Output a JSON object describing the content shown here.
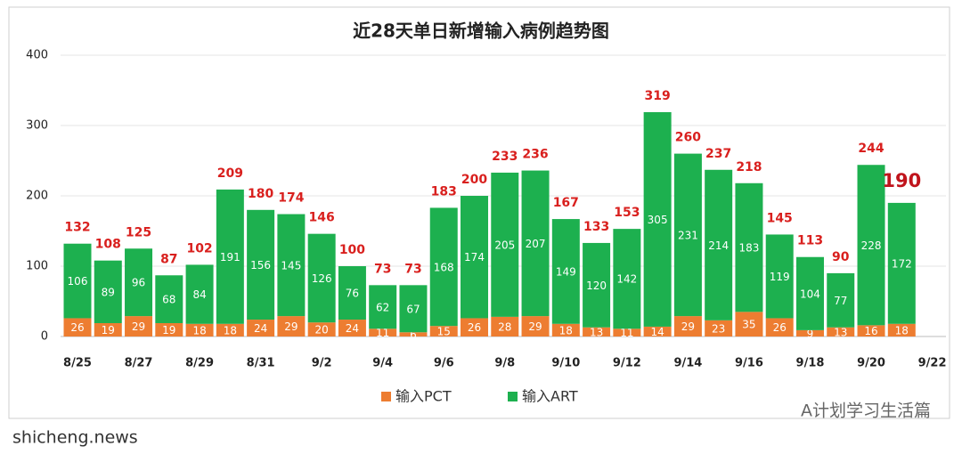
{
  "chart_data": {
    "type": "stacked_bar",
    "title": "近28天单日新增输入病例趋势图",
    "categories": [
      "8/25",
      null,
      "8/27",
      null,
      "8/29",
      null,
      "8/31",
      null,
      "9/2",
      null,
      "9/4",
      null,
      "9/6",
      null,
      "9/8",
      null,
      "9/10",
      null,
      "9/12",
      null,
      "9/14",
      null,
      "9/16",
      null,
      "9/18",
      null,
      "9/20",
      null,
      "9/22"
    ],
    "series": [
      {
        "name": "输入PCT",
        "color": "#ed7d31",
        "values": [
          26,
          19,
          29,
          19,
          18,
          18,
          24,
          29,
          20,
          24,
          11,
          6,
          15,
          26,
          28,
          29,
          18,
          13,
          11,
          14,
          29,
          23,
          35,
          26,
          9,
          13,
          16,
          18,
          null
        ]
      },
      {
        "name": "输入ART",
        "color": "#1db04f",
        "values": [
          106,
          89,
          96,
          68,
          84,
          191,
          156,
          145,
          126,
          76,
          62,
          67,
          168,
          174,
          205,
          207,
          149,
          120,
          142,
          305,
          231,
          214,
          183,
          119,
          104,
          77,
          228,
          172,
          null
        ]
      }
    ],
    "totals": [
      132,
      108,
      125,
      87,
      102,
      209,
      180,
      174,
      146,
      100,
      73,
      73,
      183,
      200,
      233,
      236,
      167,
      133,
      153,
      319,
      260,
      237,
      218,
      145,
      113,
      90,
      244,
      190,
      null
    ],
    "ylim": [
      0,
      400
    ],
    "yticks": [
      0,
      100,
      200,
      300,
      400
    ],
    "grid": true,
    "legend": "bottom",
    "watermark": "A计划学习生活篇",
    "source": "shicheng.news"
  }
}
